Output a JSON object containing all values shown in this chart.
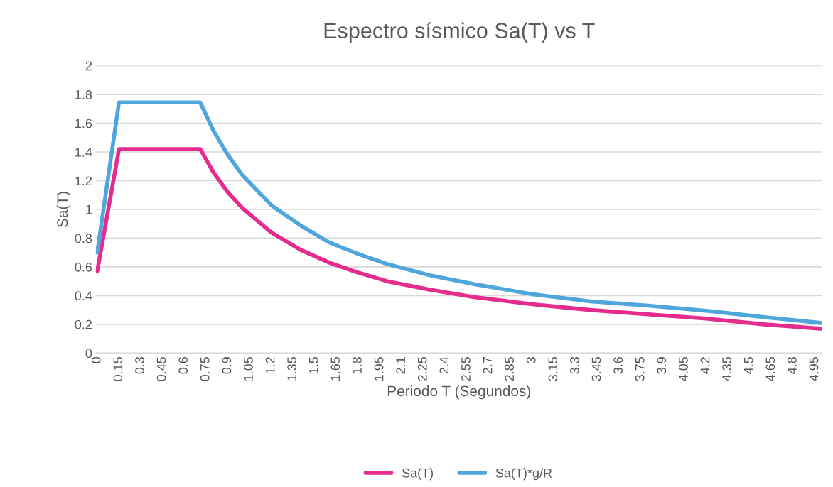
{
  "chart_data": {
    "type": "line",
    "title": "Espectro sísmico Sa(T) vs T",
    "xlabel": "Periodo T (Segundos)",
    "ylabel": "Sa(T)",
    "x": [
      0,
      0.15,
      0.71,
      0.8,
      0.9,
      1.0,
      1.2,
      1.4,
      1.6,
      1.8,
      2.0,
      2.3,
      2.6,
      3.0,
      3.4,
      3.8,
      4.2,
      4.6,
      4.99
    ],
    "series": [
      {
        "name": "Sa(T)",
        "color": "#e52c8e",
        "values": [
          0.57,
          1.42,
          1.42,
          1.26,
          1.12,
          1.01,
          0.84,
          0.72,
          0.63,
          0.56,
          0.5,
          0.44,
          0.39,
          0.34,
          0.3,
          0.27,
          0.24,
          0.2,
          0.17
        ]
      },
      {
        "name": "Sa(T)*g/R",
        "color": "#4ea6dc",
        "values": [
          0.7,
          1.745,
          1.745,
          1.55,
          1.38,
          1.24,
          1.03,
          0.89,
          0.77,
          0.69,
          0.62,
          0.54,
          0.48,
          0.41,
          0.36,
          0.33,
          0.295,
          0.25,
          0.21
        ]
      }
    ],
    "xlim": [
      -0.01,
      5.0
    ],
    "xticks": [
      0,
      0.15,
      0.3,
      0.45,
      0.6,
      0.75,
      0.9,
      1.05,
      1.2,
      1.35,
      1.5,
      1.65,
      1.8,
      1.95,
      2.1,
      2.25,
      2.4,
      2.55,
      2.7,
      2.85,
      3,
      3.15,
      3.3,
      3.45,
      3.6,
      3.75,
      3.9,
      4.05,
      4.2,
      4.35,
      4.5,
      4.65,
      4.8,
      4.95
    ],
    "ylim": [
      0,
      2
    ],
    "yticks": [
      0,
      0.2,
      0.4,
      0.6,
      0.8,
      1,
      1.2,
      1.4,
      1.6,
      1.8,
      2
    ],
    "grid": "y",
    "legend": "bottom",
    "marker": "none",
    "line_style": "solid"
  }
}
